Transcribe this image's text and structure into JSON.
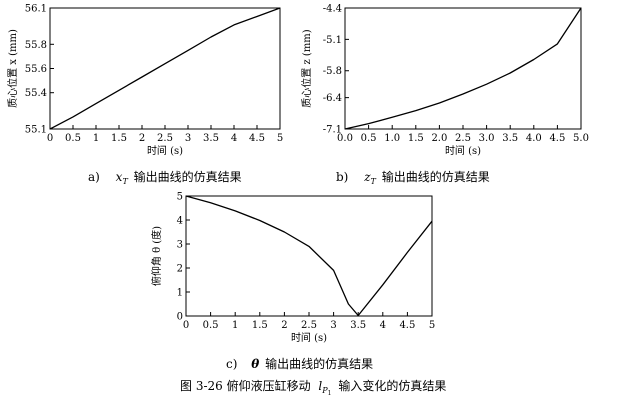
{
  "chart_data": [
    {
      "type": "line",
      "caption_prefix": "a)",
      "caption_var": "x",
      "caption_sub": "T",
      "caption_text": "输出曲线的仿真结果",
      "xlabel": "时间 (s)",
      "ylabel": "质心位置 x (mm)",
      "xlim": [
        0,
        5
      ],
      "ylim": [
        55.1,
        56.1
      ],
      "x_ticks": [
        "0",
        "0.5",
        "1",
        "1.5",
        "2",
        "2.5",
        "3",
        "3.5",
        "4",
        "4.5",
        "5"
      ],
      "y_ticks": [
        "55.1",
        "55.4",
        "55.6",
        "55.8",
        "56.1"
      ],
      "y_tick_values": [
        55.1,
        55.4,
        55.6,
        55.8,
        56.1
      ],
      "series": [
        {
          "x": [
            0,
            0.5,
            1,
            1.5,
            2,
            2.5,
            3,
            3.5,
            4,
            4.5,
            5
          ],
          "y": [
            55.1,
            55.2,
            55.31,
            55.42,
            55.53,
            55.64,
            55.75,
            55.86,
            55.96,
            56.03,
            56.1
          ]
        }
      ]
    },
    {
      "type": "line",
      "caption_prefix": "b)",
      "caption_var": "z",
      "caption_sub": "T",
      "caption_text": "输出曲线的仿真结果",
      "xlabel": "时间 (s)",
      "ylabel": "质心位置 z (mm)",
      "xlim": [
        0,
        5
      ],
      "ylim": [
        -7.1,
        -4.4
      ],
      "x_ticks": [
        "0.0",
        "0.5",
        "1.0",
        "1.5",
        "2.0",
        "2.5",
        "3.0",
        "3.5",
        "4.0",
        "4.5",
        "5.0"
      ],
      "y_ticks": [
        "-7.1",
        "-6.4",
        "-5.8",
        "-5.1",
        "-4.4"
      ],
      "y_tick_values": [
        -7.1,
        -6.4,
        -5.8,
        -5.1,
        -4.4
      ],
      "series": [
        {
          "x": [
            0,
            0.5,
            1,
            1.5,
            2,
            2.5,
            3,
            3.5,
            4,
            4.5,
            5
          ],
          "y": [
            -7.1,
            -6.98,
            -6.84,
            -6.69,
            -6.52,
            -6.32,
            -6.1,
            -5.85,
            -5.55,
            -5.2,
            -4.4
          ]
        }
      ]
    },
    {
      "type": "line",
      "caption_prefix": "c)",
      "caption_var": "θ",
      "caption_sub": "",
      "caption_text": "输出曲线的仿真结果",
      "xlabel": "时间 (s)",
      "ylabel": "俯仰角 θ (度)",
      "xlim": [
        0,
        5
      ],
      "ylim": [
        0,
        5
      ],
      "x_ticks": [
        "0",
        "0.5",
        "1",
        "1.5",
        "2",
        "2.5",
        "3",
        "3.5",
        "4",
        "4.5",
        "5"
      ],
      "y_ticks": [
        "0",
        "1",
        "2",
        "3",
        "4",
        "5"
      ],
      "y_tick_values": [
        0,
        1,
        2,
        3,
        4,
        5
      ],
      "series": [
        {
          "x": [
            0,
            0.5,
            1,
            1.5,
            2,
            2.5,
            3,
            3.3,
            3.5,
            4,
            4.5,
            5
          ],
          "y": [
            5,
            4.72,
            4.38,
            3.98,
            3.5,
            2.9,
            1.9,
            0.5,
            0.02,
            1.3,
            2.65,
            3.95
          ]
        }
      ]
    }
  ],
  "figure_caption": {
    "prefix": "图 3-26 俯仰液压缸移动",
    "var": "l",
    "sub": "P",
    "subsub": "1",
    "suffix": "输入变化的仿真结果"
  }
}
